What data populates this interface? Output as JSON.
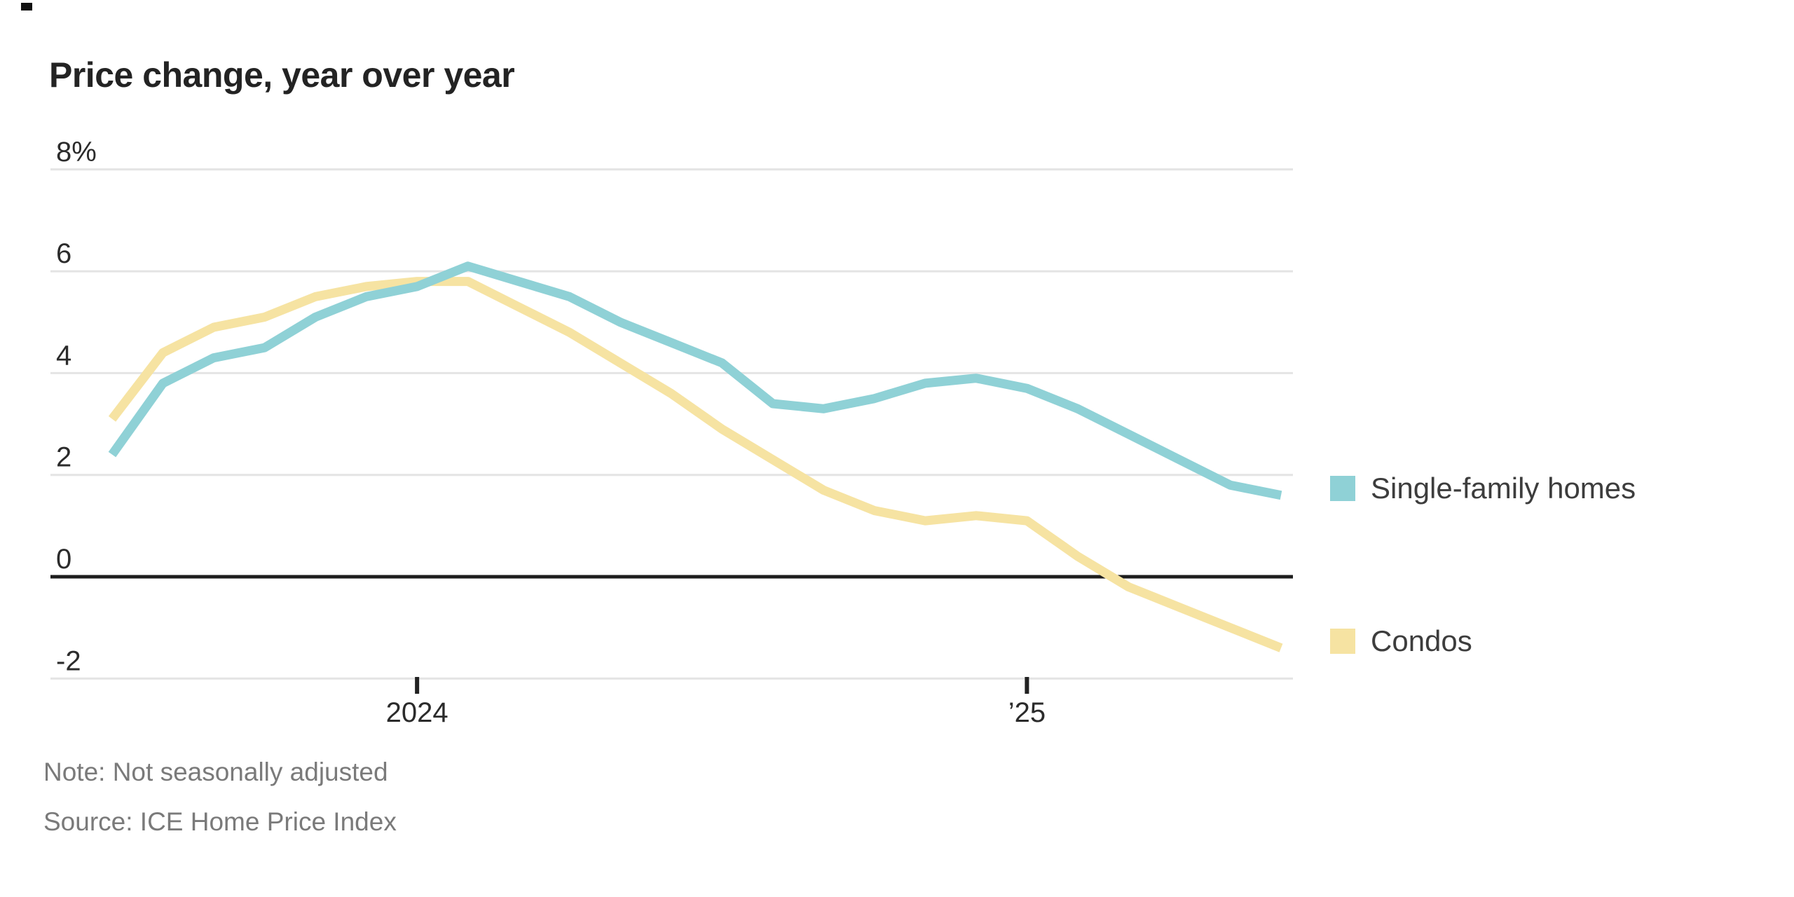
{
  "title": "Price change, year over year",
  "chart_data": {
    "type": "line",
    "x": [
      "Jul 2023",
      "Aug 2023",
      "Sep 2023",
      "Oct 2023",
      "Nov 2023",
      "Dec 2023",
      "Jan 2024",
      "Feb 2024",
      "Mar 2024",
      "Apr 2024",
      "May 2024",
      "Jun 2024",
      "Jul 2024",
      "Aug 2024",
      "Sep 2024",
      "Oct 2024",
      "Nov 2024",
      "Dec 2024",
      "Jan 2025",
      "Feb 2025",
      "Mar 2025",
      "Apr 2025",
      "May 2025",
      "Jun 2025"
    ],
    "series": [
      {
        "name": "Single-family homes",
        "color": "#8fd1d6",
        "values": [
          2.4,
          3.8,
          4.3,
          4.5,
          5.1,
          5.5,
          5.7,
          6.1,
          5.8,
          5.5,
          5.0,
          4.6,
          4.2,
          3.4,
          3.3,
          3.5,
          3.8,
          3.9,
          3.7,
          3.3,
          2.8,
          2.3,
          1.8,
          1.6
        ]
      },
      {
        "name": "Condos",
        "color": "#f6e3a2",
        "values": [
          3.1,
          4.4,
          4.9,
          5.1,
          5.5,
          5.7,
          5.8,
          5.8,
          5.3,
          4.8,
          4.2,
          3.6,
          2.9,
          2.3,
          1.7,
          1.3,
          1.1,
          1.2,
          1.1,
          0.4,
          -0.2,
          -0.6,
          -1.0,
          -1.4
        ]
      }
    ],
    "title": "Price change, year over year",
    "xlabel": "",
    "ylabel": "",
    "ylim": [
      -2,
      8
    ],
    "y_unit": "%",
    "grid": "horizontal",
    "zero_line": true,
    "legend_position": "right",
    "y_ticks": [
      {
        "value": 8,
        "label": "8%"
      },
      {
        "value": 6,
        "label": "6"
      },
      {
        "value": 4,
        "label": "4"
      },
      {
        "value": 2,
        "label": "2"
      },
      {
        "value": 0,
        "label": "0"
      },
      {
        "value": -2,
        "label": "-2"
      }
    ],
    "x_ticks": [
      {
        "index": 6,
        "label": "2024"
      },
      {
        "index": 18,
        "label": "’25"
      }
    ]
  },
  "legend": [
    {
      "label": "Single-family homes",
      "color": "#8fd1d6"
    },
    {
      "label": "Condos",
      "color": "#f6e3a2"
    }
  ],
  "notes": {
    "note": "Note: Not seasonally adjusted",
    "source": "Source: ICE Home Price Index"
  },
  "colors": {
    "single_family": "#8fd1d6",
    "condos": "#f6e3a2",
    "grid": "#e4e4e4",
    "zero_line": "#1d1d1d",
    "tick_mark": "#222222",
    "title_text": "#232323",
    "axis_text": "#2b2b2b",
    "legend_text": "#3d3d3d",
    "note_text": "#7a7a7a",
    "background": "#ffffff"
  }
}
